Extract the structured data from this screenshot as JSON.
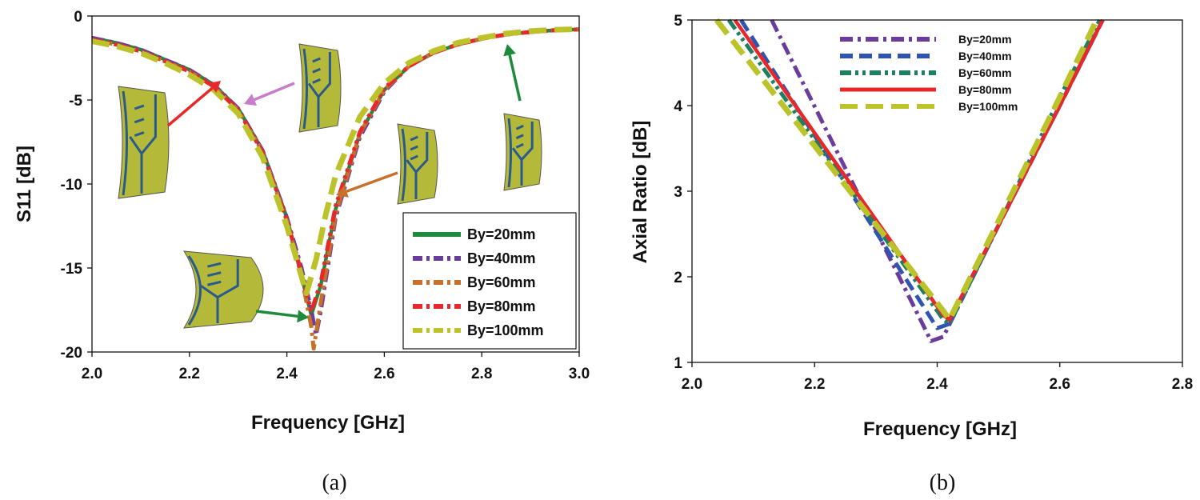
{
  "chart_data": [
    {
      "panel": "(a)",
      "type": "line",
      "xlabel": "Frequency [GHz]",
      "ylabel": "S11 [dB]",
      "xlim": [
        2.0,
        3.0
      ],
      "ylim": [
        -20,
        0
      ],
      "xticks": [
        "2.0",
        "2.2",
        "2.4",
        "2.6",
        "2.8",
        "3.0"
      ],
      "yticks": [
        "0",
        "-5",
        "-10",
        "-15",
        "-20"
      ],
      "grid": false,
      "legend_position": "bottom-right",
      "series": [
        {
          "name": "By=20mm",
          "color": "#1e8a3c",
          "dash": "solid",
          "x": [
            2.0,
            2.05,
            2.1,
            2.15,
            2.2,
            2.25,
            2.3,
            2.35,
            2.4,
            2.43,
            2.45,
            2.47,
            2.5,
            2.55,
            2.6,
            2.65,
            2.7,
            2.75,
            2.8,
            2.85,
            2.9,
            2.95,
            3.0
          ],
          "y": [
            -1.3,
            -1.6,
            -2.0,
            -2.6,
            -3.2,
            -4.1,
            -5.5,
            -8.0,
            -12.0,
            -15.5,
            -17.8,
            -16.0,
            -11.5,
            -7.0,
            -4.4,
            -3.0,
            -2.2,
            -1.7,
            -1.35,
            -1.1,
            -0.95,
            -0.85,
            -0.8
          ]
        },
        {
          "name": "By=40mm",
          "color": "#6a3d9a",
          "dash": "dashdot",
          "x": [
            2.0,
            2.05,
            2.1,
            2.15,
            2.2,
            2.25,
            2.3,
            2.35,
            2.4,
            2.43,
            2.45,
            2.46,
            2.47,
            2.5,
            2.55,
            2.6,
            2.65,
            2.7,
            2.75,
            2.8,
            2.85,
            2.9,
            2.95,
            3.0
          ],
          "y": [
            -1.3,
            -1.6,
            -2.0,
            -2.6,
            -3.2,
            -4.1,
            -5.5,
            -8.0,
            -12.0,
            -15.0,
            -17.5,
            -19.0,
            -17.5,
            -12.0,
            -7.2,
            -4.5,
            -3.0,
            -2.2,
            -1.7,
            -1.35,
            -1.1,
            -0.95,
            -0.85,
            -0.8
          ]
        },
        {
          "name": "By=60mm",
          "color": "#c8702a",
          "dash": "dashdot",
          "x": [
            2.0,
            2.05,
            2.1,
            2.15,
            2.2,
            2.25,
            2.3,
            2.35,
            2.4,
            2.43,
            2.45,
            2.455,
            2.47,
            2.5,
            2.55,
            2.6,
            2.65,
            2.7,
            2.75,
            2.8,
            2.85,
            2.9,
            2.95,
            3.0
          ],
          "y": [
            -1.4,
            -1.7,
            -2.1,
            -2.7,
            -3.3,
            -4.2,
            -5.6,
            -8.1,
            -12.2,
            -15.5,
            -18.5,
            -19.8,
            -17.0,
            -11.8,
            -7.0,
            -4.4,
            -3.0,
            -2.2,
            -1.7,
            -1.35,
            -1.1,
            -0.95,
            -0.85,
            -0.8
          ]
        },
        {
          "name": "By=80mm",
          "color": "#e8272a",
          "dash": "dashdotdot",
          "x": [
            2.0,
            2.05,
            2.1,
            2.15,
            2.2,
            2.25,
            2.3,
            2.35,
            2.4,
            2.43,
            2.45,
            2.47,
            2.5,
            2.55,
            2.6,
            2.65,
            2.7,
            2.75,
            2.8,
            2.85,
            2.9,
            2.95,
            3.0
          ],
          "y": [
            -1.4,
            -1.7,
            -2.1,
            -2.7,
            -3.3,
            -4.2,
            -5.6,
            -8.1,
            -12.1,
            -15.3,
            -17.6,
            -15.8,
            -11.3,
            -6.9,
            -4.3,
            -3.0,
            -2.2,
            -1.7,
            -1.35,
            -1.1,
            -0.95,
            -0.85,
            -0.8
          ]
        },
        {
          "name": "By=100mm",
          "color": "#bcc32a",
          "dash": "longdash",
          "x": [
            2.0,
            2.05,
            2.1,
            2.15,
            2.2,
            2.25,
            2.3,
            2.35,
            2.4,
            2.43,
            2.44,
            2.46,
            2.48,
            2.5,
            2.55,
            2.6,
            2.65,
            2.7,
            2.75,
            2.8,
            2.85,
            2.9,
            2.95,
            3.0
          ],
          "y": [
            -1.5,
            -1.8,
            -2.2,
            -2.8,
            -3.5,
            -4.4,
            -5.8,
            -8.4,
            -12.5,
            -15.5,
            -16.5,
            -14.5,
            -11.8,
            -9.5,
            -6.0,
            -4.0,
            -2.8,
            -2.1,
            -1.6,
            -1.3,
            -1.05,
            -0.9,
            -0.82,
            -0.78
          ]
        }
      ]
    },
    {
      "panel": "(b)",
      "type": "line",
      "xlabel": "Frequency [GHz]",
      "ylabel": "Axial Ratio [dB]",
      "xlim": [
        2.0,
        2.8
      ],
      "ylim": [
        1,
        5
      ],
      "xticks": [
        "2.0",
        "2.2",
        "2.4",
        "2.6",
        "2.8"
      ],
      "yticks": [
        "1",
        "2",
        "3",
        "4",
        "5"
      ],
      "grid": false,
      "legend_position": "top",
      "series": [
        {
          "name": "By=20mm",
          "color": "#6a3d9a",
          "dash": "dashdot",
          "x": [
            2.13,
            2.39,
            2.41,
            2.5,
            2.6,
            2.67
          ],
          "y": [
            5.0,
            1.25,
            1.3,
            2.6,
            4.0,
            5.0
          ]
        },
        {
          "name": "By=40mm",
          "color": "#2f55b0",
          "dash": "dash",
          "x": [
            2.08,
            2.4,
            2.42,
            2.5,
            2.6,
            2.67
          ],
          "y": [
            5.0,
            1.4,
            1.45,
            2.6,
            4.0,
            5.0
          ]
        },
        {
          "name": "By=60mm",
          "color": "#1e8060",
          "dash": "dashdotdot",
          "x": [
            2.06,
            2.41,
            2.42,
            2.5,
            2.6,
            2.665
          ],
          "y": [
            5.0,
            1.5,
            1.45,
            2.6,
            4.1,
            5.0
          ]
        },
        {
          "name": "By=80mm",
          "color": "#e8272a",
          "dash": "solid",
          "x": [
            2.07,
            2.41,
            2.42,
            2.5,
            2.6,
            2.67
          ],
          "y": [
            5.0,
            1.55,
            1.5,
            2.6,
            4.0,
            5.0
          ]
        },
        {
          "name": "By=100mm",
          "color": "#bcc32a",
          "dash": "longdash",
          "x": [
            2.04,
            2.41,
            2.42,
            2.5,
            2.6,
            2.66
          ],
          "y": [
            5.0,
            1.6,
            1.5,
            2.65,
            4.1,
            5.0
          ]
        }
      ]
    }
  ],
  "annotation_arrows": [
    {
      "color": "#e8272a",
      "label": "red arrow"
    },
    {
      "color": "#c77dc9",
      "label": "pink arrow"
    },
    {
      "color": "#c8702a",
      "label": "orange arrow"
    },
    {
      "color": "#1e8a3c",
      "label": "green arrow"
    },
    {
      "color": "#1e8a3c",
      "label": "green arrow"
    }
  ],
  "antenna_fill": "#b5b93a",
  "antenna_trace": "#2a5a8a"
}
